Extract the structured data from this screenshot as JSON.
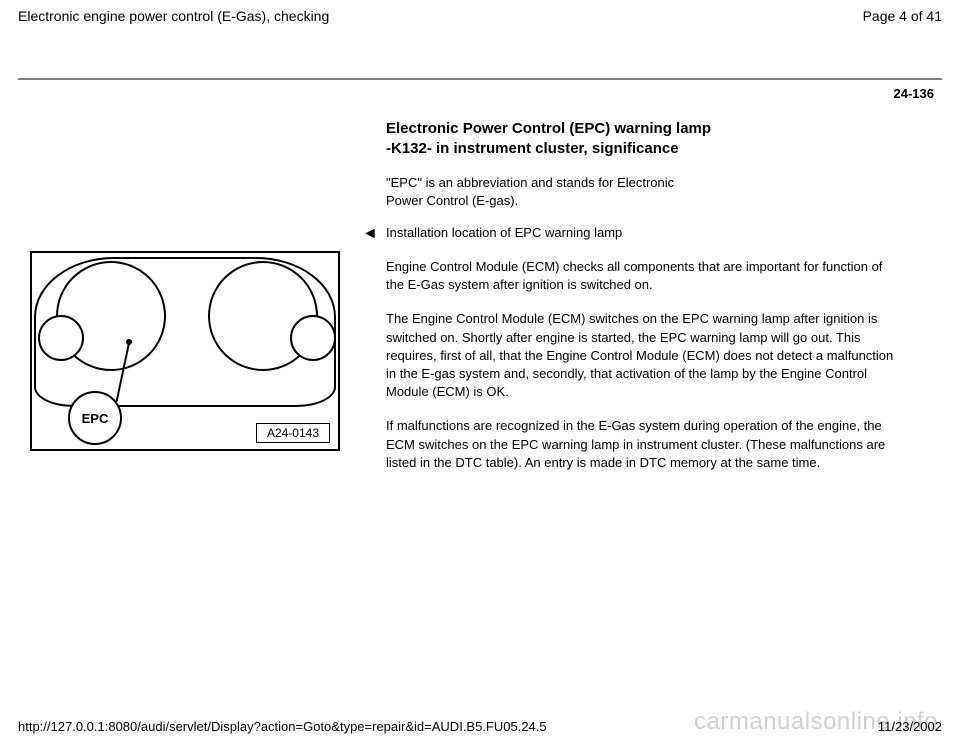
{
  "header": {
    "title": "Electronic engine power control (E-Gas), checking",
    "page_indicator": "Page 4 of 41"
  },
  "page_number": "24-136",
  "section": {
    "title": "Electronic Power Control (EPC) warning lamp -K132- in instrument cluster, significance",
    "intro": "\"EPC\" is an abbreviation and stands for Electronic Power Control (E-gas).",
    "arrow_line": "Installation location of EPC warning lamp",
    "paragraphs": [
      "Engine Control Module (ECM) checks all components that are important for function of the E-Gas system after ignition is switched on.",
      "The Engine Control Module (ECM) switches on the EPC warning lamp after ignition is switched on. Shortly after engine is started, the EPC warning lamp will go out. This requires, first of all, that the Engine Control Module (ECM) does not detect a malfunction in the E-gas system and, secondly, that activation of the lamp by the Engine Control Module (ECM) is OK.",
      "If malfunctions are recognized in the E-Gas system during operation of the engine, the ECM switches on the EPC warning lamp in instrument cluster. (These malfunctions are listed in the DTC table). An entry is made in DTC memory at the same time."
    ]
  },
  "figure": {
    "callout_label": "EPC",
    "id_label": "A24-0143"
  },
  "footer": {
    "url": "http://127.0.0.1:8080/audi/servlet/Display?action=Goto&type=repair&id=AUDI.B5.FU05.24.5",
    "date": "11/23/2002"
  },
  "watermark": "carmanualsonline.info",
  "colors": {
    "text": "#000000",
    "rule": "#808080",
    "watermark": "#d0d0d0",
    "background": "#ffffff"
  }
}
